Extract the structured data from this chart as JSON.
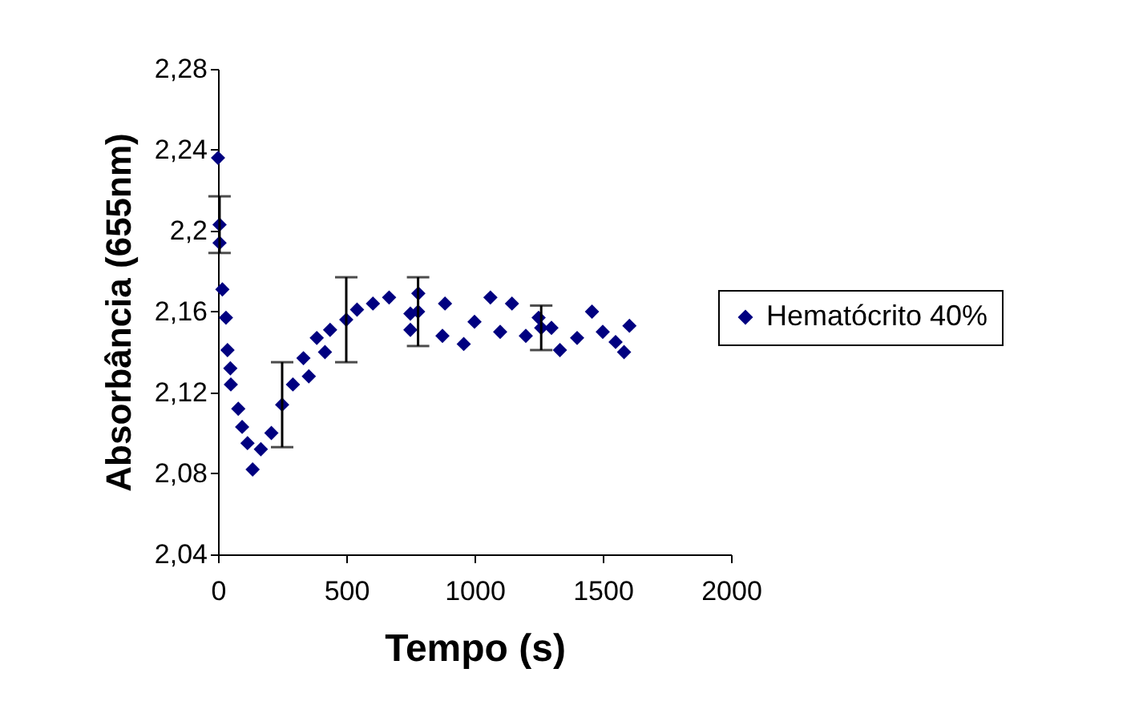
{
  "chart_data": {
    "type": "scatter",
    "xlabel": "Tempo (s)",
    "ylabel": "Absorbância (655nm)",
    "xlim": [
      0,
      2000
    ],
    "xticks": [
      0,
      500,
      1000,
      1500,
      2000
    ],
    "ylim": [
      2.04,
      2.28
    ],
    "yticks": [
      {
        "value": 2.04,
        "label": "2,04"
      },
      {
        "value": 2.08,
        "label": "2,08"
      },
      {
        "value": 2.12,
        "label": "2,12"
      },
      {
        "value": 2.16,
        "label": "2,16"
      },
      {
        "value": 2.2,
        "label": "2,2"
      },
      {
        "value": 2.24,
        "label": "2,24"
      },
      {
        "value": 2.28,
        "label": "2,28"
      }
    ],
    "grid": false,
    "legend": "right",
    "marker": "diamond",
    "x": [
      0,
      6,
      6,
      17,
      31,
      37,
      48,
      50,
      79,
      94,
      115,
      135,
      167,
      208,
      250,
      292,
      333,
      354,
      385,
      417,
      437,
      500,
      542,
      604,
      667,
      750,
      750,
      780,
      781,
      875,
      885,
      958,
      1000,
      1062,
      1100,
      1146,
      1200,
      1250,
      1260,
      1300,
      1333,
      1400,
      1458,
      1500,
      1550,
      1583,
      1604
    ],
    "series": [
      {
        "name": "Hematócrito 40%",
        "color": "#000080",
        "values": [
          2.236,
          2.203,
          2.194,
          2.171,
          2.157,
          2.141,
          2.132,
          2.124,
          2.112,
          2.103,
          2.095,
          2.082,
          2.092,
          2.1,
          2.114,
          2.124,
          2.137,
          2.128,
          2.147,
          2.14,
          2.151,
          2.156,
          2.161,
          2.164,
          2.167,
          2.159,
          2.151,
          2.16,
          2.169,
          2.148,
          2.164,
          2.144,
          2.155,
          2.167,
          2.15,
          2.164,
          2.148,
          2.157,
          2.152,
          2.152,
          2.141,
          2.147,
          2.16,
          2.15,
          2.145,
          2.14,
          2.153
        ],
        "errors": [
          null,
          0.014,
          null,
          null,
          null,
          null,
          null,
          null,
          null,
          null,
          null,
          null,
          null,
          null,
          0.021,
          null,
          null,
          null,
          null,
          null,
          null,
          0.021,
          null,
          null,
          null,
          null,
          null,
          0.017,
          null,
          null,
          null,
          null,
          null,
          null,
          null,
          null,
          null,
          null,
          0.011,
          null,
          null,
          null,
          null,
          null,
          null,
          null,
          null
        ]
      }
    ]
  }
}
